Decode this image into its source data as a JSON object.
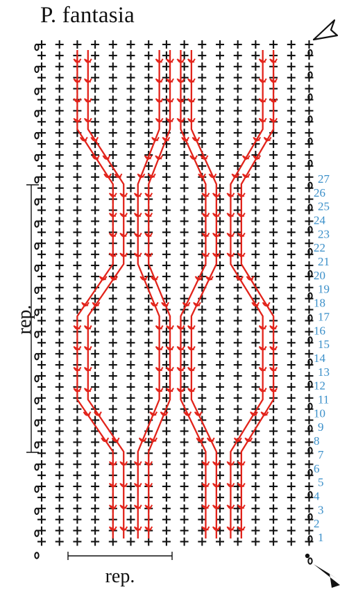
{
  "title": "P. fantasia",
  "rep_label_vertical": "rep.",
  "rep_label_horizontal": "rep.",
  "row_numbers": [
    "1",
    "2",
    "3",
    "4",
    "5",
    "6",
    "7",
    "8",
    "9",
    "10",
    "11",
    "12",
    "13",
    "14",
    "15",
    "16",
    "17",
    "18",
    "19",
    "20",
    "21",
    "22",
    "23",
    "24",
    "25",
    "26",
    "27"
  ],
  "stitch_columns": 16,
  "chain_rows": 24,
  "colors": {
    "background_stitch": "#111111",
    "cable_stitch": "#e2231a",
    "row_number": "#3a8fc9"
  },
  "symbols": {
    "background": "single-crochet-cross",
    "chain": "chain-oval",
    "cable": "front-post-treble-crochet",
    "start_marker": "arrow-start-icon",
    "end_marker": "arrow-end-outline-icon"
  }
}
